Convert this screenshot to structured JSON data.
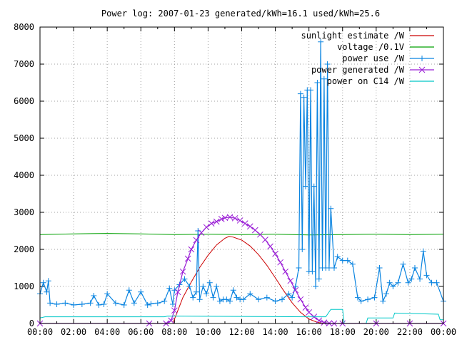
{
  "chart_data": {
    "type": "line",
    "title": "Power log: 2007-01-23 generated/kWh=16.1 used/kWh=25.6",
    "xlabel": "",
    "ylabel": "",
    "xlim": [
      "00:00",
      "24:00"
    ],
    "ylim": [
      0,
      8000
    ],
    "x_tick_labels": [
      "00:00",
      "02:00",
      "04:00",
      "06:00",
      "08:00",
      "10:00",
      "12:00",
      "14:00",
      "16:00",
      "18:00",
      "20:00",
      "22:00",
      "00:00"
    ],
    "y_tick_labels": [
      "0",
      "1000",
      "2000",
      "3000",
      "4000",
      "5000",
      "6000",
      "7000",
      "8000"
    ],
    "grid": true,
    "legend_position": "top-right",
    "series": [
      {
        "name": "sunlight estimate /W",
        "color": "#cc0000",
        "style": "line",
        "x_hours": [
          7.9,
          8.5,
          9.0,
          9.5,
          10.0,
          10.5,
          11.0,
          11.25,
          11.5,
          12.0,
          12.5,
          13.0,
          13.5,
          14.0,
          14.5,
          15.0,
          15.5,
          16.0,
          16.5,
          16.9
        ],
        "values": [
          0,
          700,
          1120,
          1510,
          1840,
          2120,
          2300,
          2350,
          2330,
          2250,
          2090,
          1860,
          1570,
          1230,
          880,
          560,
          300,
          120,
          30,
          0
        ]
      },
      {
        "name": "voltage /0.1V",
        "color": "#00a000",
        "style": "line",
        "x_hours": [
          0,
          2,
          4,
          6,
          8,
          10,
          12,
          14,
          16,
          18,
          20,
          22,
          24
        ],
        "values": [
          2400,
          2420,
          2430,
          2420,
          2400,
          2410,
          2400,
          2410,
          2390,
          2400,
          2410,
          2400,
          2410
        ]
      },
      {
        "name": "power use /W",
        "color": "#0a84e0",
        "style": "linespoints",
        "x_hours": [
          0,
          0.2,
          0.4,
          0.5,
          0.6,
          1.0,
          1.5,
          2.0,
          2.5,
          3.0,
          3.2,
          3.5,
          3.8,
          4.0,
          4.5,
          5.0,
          5.3,
          5.6,
          6.0,
          6.4,
          6.6,
          7.0,
          7.4,
          7.7,
          7.9,
          8.0,
          8.3,
          8.6,
          8.9,
          9.1,
          9.3,
          9.4,
          9.5,
          9.7,
          9.9,
          10.1,
          10.3,
          10.5,
          10.7,
          10.9,
          11.1,
          11.3,
          11.5,
          11.7,
          11.9,
          12.1,
          12.5,
          13.0,
          13.5,
          14.0,
          14.4,
          14.8,
          15.0,
          15.2,
          15.4,
          15.5,
          15.6,
          15.7,
          15.8,
          15.9,
          16.0,
          16.1,
          16.2,
          16.3,
          16.4,
          16.5,
          16.6,
          16.7,
          16.8,
          16.9,
          17.0,
          17.1,
          17.2,
          17.3,
          17.5,
          17.7,
          18.0,
          18.3,
          18.6,
          18.9,
          19.1,
          19.5,
          19.9,
          20.2,
          20.4,
          20.6,
          20.8,
          21.0,
          21.3,
          21.6,
          21.9,
          22.1,
          22.3,
          22.6,
          22.8,
          23.0,
          23.3,
          23.6,
          24.0
        ],
        "values": [
          800,
          1100,
          850,
          1150,
          550,
          520,
          550,
          500,
          520,
          550,
          750,
          500,
          520,
          800,
          550,
          500,
          900,
          550,
          850,
          500,
          530,
          550,
          600,
          950,
          520,
          900,
          1050,
          1200,
          1000,
          700,
          850,
          2500,
          650,
          1000,
          800,
          1100,
          700,
          1000,
          600,
          650,
          650,
          600,
          900,
          700,
          650,
          650,
          800,
          650,
          700,
          600,
          650,
          800,
          700,
          1000,
          1500,
          6200,
          2000,
          6100,
          3700,
          6300,
          1400,
          6300,
          1400,
          3700,
          1000,
          6500,
          1200,
          7600,
          1500,
          6600,
          1500,
          7000,
          1500,
          3100,
          1500,
          1800,
          1700,
          1700,
          1600,
          700,
          600,
          650,
          700,
          1500,
          600,
          800,
          1100,
          1000,
          1100,
          1600,
          1100,
          1200,
          1500,
          1200,
          1950,
          1300,
          1100,
          1100,
          600
        ]
      },
      {
        "name": "power generated /W",
        "color": "#9a1ed6",
        "style": "linespoints",
        "x_hours": [
          0,
          6.5,
          7.5,
          7.8,
          8.0,
          8.2,
          8.5,
          8.8,
          9.0,
          9.3,
          9.6,
          9.9,
          10.2,
          10.5,
          10.8,
          11.0,
          11.3,
          11.6,
          11.9,
          12.2,
          12.5,
          12.8,
          13.1,
          13.4,
          13.7,
          14.0,
          14.3,
          14.6,
          14.9,
          15.2,
          15.5,
          15.8,
          16.0,
          16.3,
          16.6,
          16.9,
          17.2,
          17.5,
          18.0,
          20.0,
          22.0,
          24.0
        ],
        "values": [
          0,
          0,
          0,
          80,
          350,
          850,
          1400,
          1750,
          2000,
          2250,
          2450,
          2600,
          2700,
          2750,
          2820,
          2850,
          2870,
          2840,
          2780,
          2700,
          2620,
          2520,
          2400,
          2260,
          2080,
          1880,
          1650,
          1400,
          1150,
          900,
          650,
          430,
          300,
          180,
          80,
          25,
          5,
          0,
          0,
          0,
          0,
          0
        ]
      },
      {
        "name": "power on C14 /W",
        "color": "#00c8c8",
        "style": "line",
        "x_hours": [
          0,
          0.3,
          7.4,
          7.6,
          16.0,
          16.3,
          17.0,
          17.3,
          18.0,
          18.1,
          19.4,
          19.5,
          21.0,
          21.1,
          23.7,
          23.8,
          24.0
        ],
        "values": [
          150,
          180,
          180,
          200,
          180,
          180,
          180,
          380,
          380,
          0,
          0,
          150,
          150,
          280,
          250,
          100,
          100
        ]
      }
    ]
  }
}
